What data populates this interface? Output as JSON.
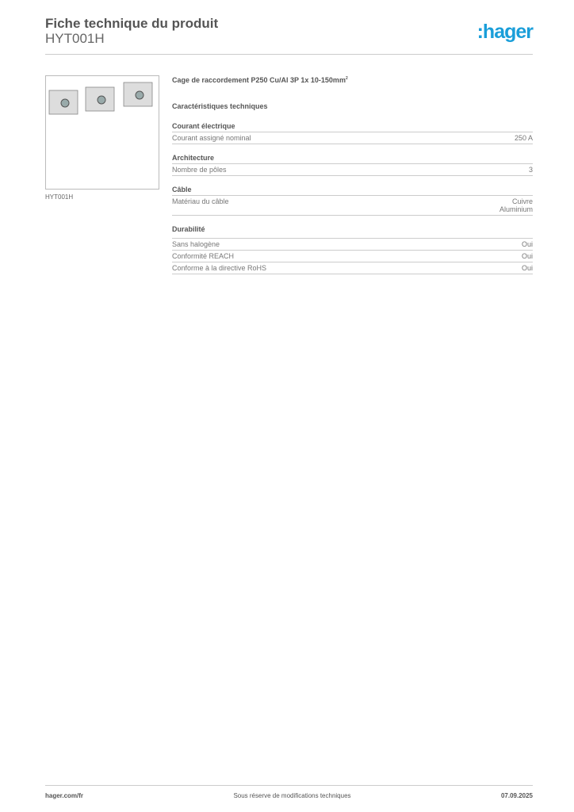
{
  "header": {
    "title": "Fiche technique du produit",
    "code": "HYT001H",
    "logo": ":hager"
  },
  "product": {
    "image_caption": "HYT001H",
    "name": "Cage de raccordement P250 Cu/Al 3P 1x 10-150mm",
    "name_sup": "2",
    "section_title": "Caractéristiques techniques"
  },
  "groups": [
    {
      "title": "Courant électrique",
      "rows": [
        {
          "label": "Courant assigné nominal",
          "value": "250 A"
        }
      ]
    },
    {
      "title": "Architecture",
      "rows": [
        {
          "label": "Nombre de pôles",
          "value": "3"
        }
      ]
    },
    {
      "title": "Câble",
      "rows": [
        {
          "label": "Matériau du câble",
          "value": "Cuivre",
          "value2": "Aluminium"
        }
      ]
    },
    {
      "title": "Durabilité",
      "rows": [
        {
          "label": "Sans halogène",
          "value": "Oui"
        },
        {
          "label": "Conformité REACH",
          "value": "Oui"
        },
        {
          "label": "Conforme à la directive RoHS",
          "value": "Oui"
        }
      ]
    }
  ],
  "footer": {
    "website": "hager.com/fr",
    "note": "Sous réserve de modifications techniques",
    "date": "07.09.2025"
  }
}
